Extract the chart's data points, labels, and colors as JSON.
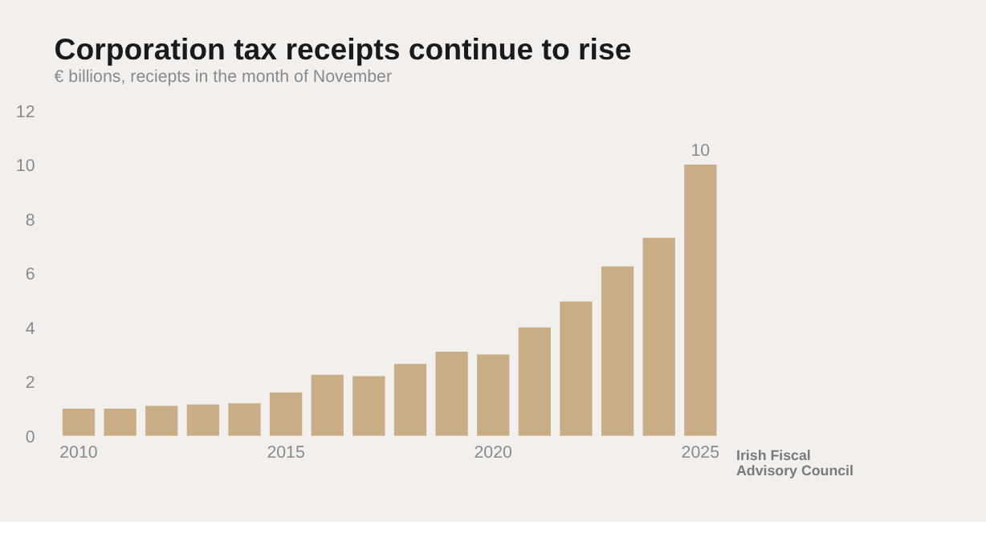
{
  "chart_data": {
    "type": "bar",
    "title": "Corporation tax receipts continue to rise",
    "subtitle": "€ billions, reciepts in the month of November",
    "categories": [
      "2010",
      null,
      null,
      null,
      null,
      "2015",
      null,
      null,
      null,
      null,
      "2020",
      null,
      null,
      null,
      null,
      "2025"
    ],
    "series": [
      {
        "color": "#c9ad86",
        "values": [
          1.0,
          1.0,
          1.1,
          1.15,
          1.2,
          1.6,
          2.25,
          2.2,
          2.65,
          3.1,
          3.0,
          4.0,
          4.95,
          6.25,
          7.3,
          10.0
        ],
        "value_labels": [
          null,
          null,
          null,
          null,
          null,
          null,
          null,
          null,
          null,
          null,
          null,
          null,
          null,
          null,
          null,
          "10"
        ]
      }
    ],
    "ylim": [
      0,
      12
    ],
    "yticks": [
      0,
      2,
      4,
      6,
      8,
      10,
      12
    ],
    "grid": false,
    "annotations": [
      "Irish Fiscal Advisory Council"
    ]
  }
}
